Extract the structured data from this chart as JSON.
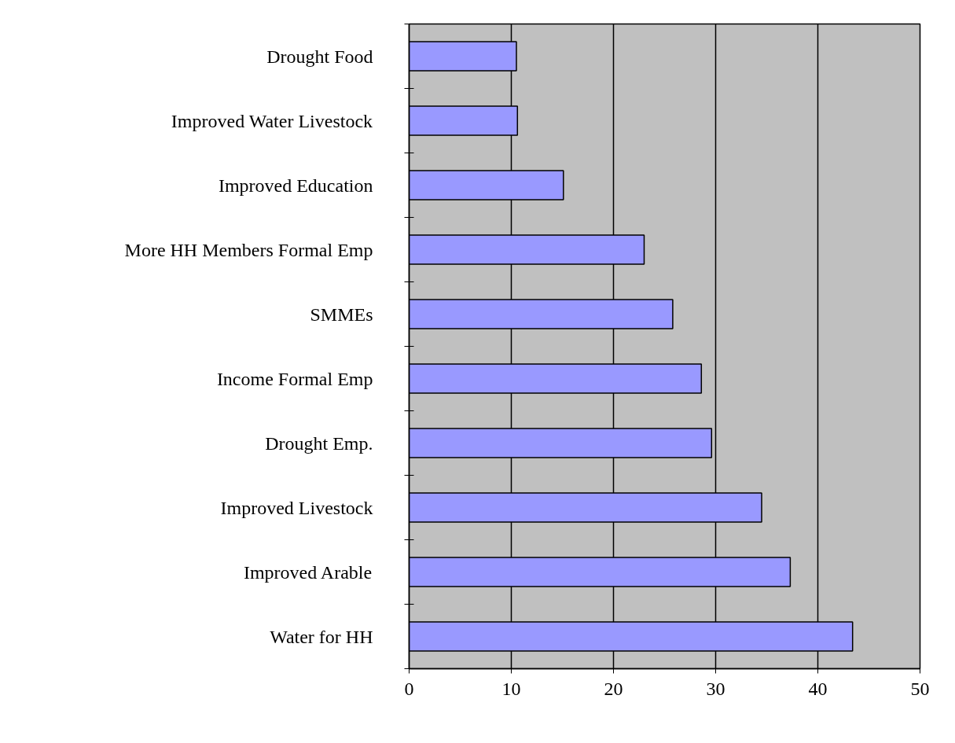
{
  "chart_data": {
    "type": "bar",
    "orientation": "horizontal",
    "categories": [
      "Drought Food",
      "Improved Water Livestock",
      "Improved Education",
      "More HH Members Formal Emp",
      "SMMEs",
      "Income Formal Emp",
      "Drought Emp.",
      "Improved Livestock",
      "Improved Arable",
      "Water for HH"
    ],
    "values": [
      10.5,
      10.6,
      15.1,
      23.0,
      25.8,
      28.6,
      29.6,
      34.5,
      37.3,
      43.4
    ],
    "color": "#9999ff",
    "xlim": [
      0,
      50
    ],
    "xticks": [
      0,
      10,
      20,
      30,
      40,
      50
    ],
    "grid": "x"
  }
}
